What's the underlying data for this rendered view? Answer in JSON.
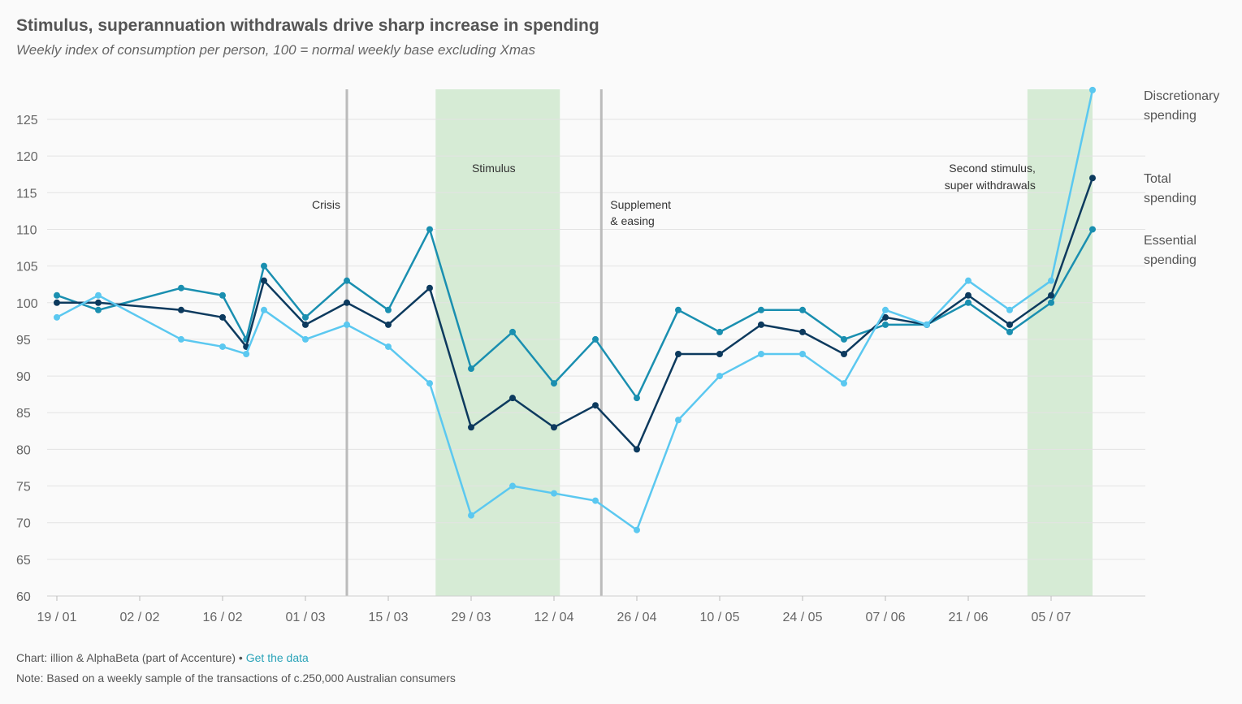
{
  "title": "Stimulus, superannuation withdrawals drive sharp increase in spending",
  "subtitle": "Weekly index of consumption per person, 100 = normal weekly base excluding Xmas",
  "footer": {
    "source": "Chart: illion & AlphaBeta (part of Accenture)",
    "separator": " • ",
    "link": "Get the data",
    "note": "Note: Based on a weekly sample of the transactions of c.250,000 Australian consumers"
  },
  "colors": {
    "discretionary": "#5bc8f0",
    "total": "#0d3a5e",
    "essential": "#1a8fb0",
    "shade": "#d6ebd5",
    "vline": "#bbbbbb",
    "grid": "#e3e3e3"
  },
  "chart_data": {
    "type": "line",
    "ylim": [
      60,
      128
    ],
    "yticks": [
      60,
      65,
      70,
      75,
      80,
      85,
      90,
      95,
      100,
      105,
      110,
      115,
      120,
      125
    ],
    "xdomain": [
      "2020-01-19",
      "2020-07-19"
    ],
    "xticks": [
      {
        "date": "2020-01-19",
        "label": "19 / 01"
      },
      {
        "date": "2020-02-02",
        "label": "02 / 02"
      },
      {
        "date": "2020-02-16",
        "label": "16 / 02"
      },
      {
        "date": "2020-03-01",
        "label": "01 / 03"
      },
      {
        "date": "2020-03-15",
        "label": "15 / 03"
      },
      {
        "date": "2020-03-29",
        "label": "29 / 03"
      },
      {
        "date": "2020-04-12",
        "label": "12 / 04"
      },
      {
        "date": "2020-04-26",
        "label": "26 / 04"
      },
      {
        "date": "2020-05-10",
        "label": "10 / 05"
      },
      {
        "date": "2020-05-24",
        "label": "24 / 05"
      },
      {
        "date": "2020-06-07",
        "label": "07 / 06"
      },
      {
        "date": "2020-06-21",
        "label": "21 / 06"
      },
      {
        "date": "2020-07-05",
        "label": "05 / 07"
      }
    ],
    "shaded_regions": [
      {
        "start": "2020-03-23",
        "end": "2020-04-13",
        "label": "Stimulus"
      },
      {
        "start": "2020-07-01",
        "end": "2020-07-12",
        "label": "Second stimulus,|super withdrawals"
      }
    ],
    "vertical_lines": [
      {
        "date": "2020-03-08",
        "label": "Crisis"
      },
      {
        "date": "2020-04-20",
        "label": "Supplement|& easing"
      }
    ],
    "series": [
      {
        "name": "Essential spending",
        "color_key": "essential",
        "points": [
          [
            "2020-01-19",
            101
          ],
          [
            "2020-01-26",
            99
          ],
          [
            "2020-02-09",
            102
          ],
          [
            "2020-02-16",
            101
          ],
          [
            "2020-02-20",
            95
          ],
          [
            "2020-02-23",
            105
          ],
          [
            "2020-03-01",
            98
          ],
          [
            "2020-03-08",
            103
          ],
          [
            "2020-03-15",
            99
          ],
          [
            "2020-03-22",
            110
          ],
          [
            "2020-03-29",
            91
          ],
          [
            "2020-04-05",
            96
          ],
          [
            "2020-04-12",
            89
          ],
          [
            "2020-04-19",
            95
          ],
          [
            "2020-04-26",
            87
          ],
          [
            "2020-05-03",
            99
          ],
          [
            "2020-05-10",
            96
          ],
          [
            "2020-05-17",
            99
          ],
          [
            "2020-05-24",
            99
          ],
          [
            "2020-05-31",
            95
          ],
          [
            "2020-06-07",
            97
          ],
          [
            "2020-06-14",
            97
          ],
          [
            "2020-06-21",
            100
          ],
          [
            "2020-06-28",
            96
          ],
          [
            "2020-07-05",
            100
          ],
          [
            "2020-07-12",
            110
          ]
        ]
      },
      {
        "name": "Total spending",
        "color_key": "total",
        "points": [
          [
            "2020-01-19",
            100
          ],
          [
            "2020-01-26",
            100
          ],
          [
            "2020-02-09",
            99
          ],
          [
            "2020-02-16",
            98
          ],
          [
            "2020-02-20",
            94
          ],
          [
            "2020-02-23",
            103
          ],
          [
            "2020-03-01",
            97
          ],
          [
            "2020-03-08",
            100
          ],
          [
            "2020-03-15",
            97
          ],
          [
            "2020-03-22",
            102
          ],
          [
            "2020-03-29",
            83
          ],
          [
            "2020-04-05",
            87
          ],
          [
            "2020-04-12",
            83
          ],
          [
            "2020-04-19",
            86
          ],
          [
            "2020-04-26",
            80
          ],
          [
            "2020-05-03",
            93
          ],
          [
            "2020-05-10",
            93
          ],
          [
            "2020-05-17",
            97
          ],
          [
            "2020-05-24",
            96
          ],
          [
            "2020-05-31",
            93
          ],
          [
            "2020-06-07",
            98
          ],
          [
            "2020-06-14",
            97
          ],
          [
            "2020-06-21",
            101
          ],
          [
            "2020-06-28",
            97
          ],
          [
            "2020-07-05",
            101
          ],
          [
            "2020-07-12",
            117
          ]
        ]
      },
      {
        "name": "Discretionary spending",
        "color_key": "discretionary",
        "points": [
          [
            "2020-01-19",
            98
          ],
          [
            "2020-01-26",
            101
          ],
          [
            "2020-02-09",
            95
          ],
          [
            "2020-02-16",
            94
          ],
          [
            "2020-02-20",
            93
          ],
          [
            "2020-02-23",
            99
          ],
          [
            "2020-03-01",
            95
          ],
          [
            "2020-03-08",
            97
          ],
          [
            "2020-03-15",
            94
          ],
          [
            "2020-03-22",
            89
          ],
          [
            "2020-03-29",
            71
          ],
          [
            "2020-04-05",
            75
          ],
          [
            "2020-04-12",
            74
          ],
          [
            "2020-04-19",
            73
          ],
          [
            "2020-04-26",
            69
          ],
          [
            "2020-05-03",
            84
          ],
          [
            "2020-05-10",
            90
          ],
          [
            "2020-05-17",
            93
          ],
          [
            "2020-05-24",
            93
          ],
          [
            "2020-05-31",
            89
          ],
          [
            "2020-06-07",
            99
          ],
          [
            "2020-06-14",
            97
          ],
          [
            "2020-06-21",
            103
          ],
          [
            "2020-06-28",
            99
          ],
          [
            "2020-07-05",
            103
          ],
          [
            "2020-07-12",
            129
          ]
        ]
      }
    ],
    "legend": [
      {
        "label": "Discretionary|spending",
        "color_key": "discretionary"
      },
      {
        "label": "Total|spending",
        "color_key": "total"
      },
      {
        "label": "Essential|spending",
        "color_key": "essential"
      }
    ]
  }
}
